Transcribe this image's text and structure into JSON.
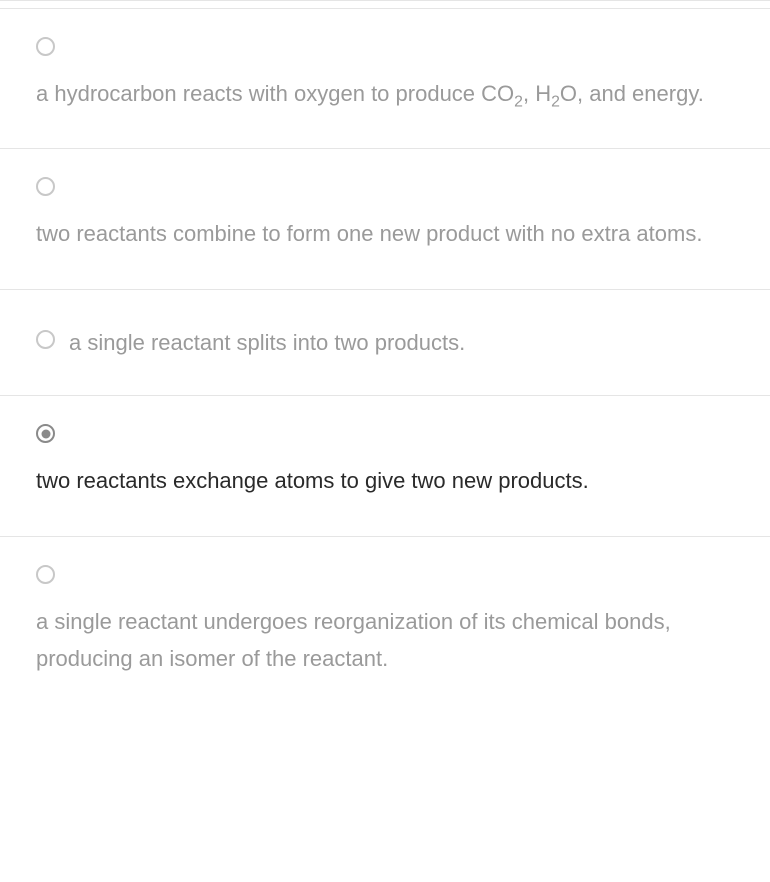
{
  "options": [
    {
      "text_html": "a hydrocarbon reacts with oxygen to produce CO<sub>2</sub>, H<sub>2</sub>O, and energy.",
      "selected": false,
      "inline": false
    },
    {
      "text_html": "two reactants combine to form one new product with no extra atoms.",
      "selected": false,
      "inline": false
    },
    {
      "text_html": "a single reactant splits into two products.",
      "selected": false,
      "inline": true
    },
    {
      "text_html": "two reactants exchange atoms to give two new products.",
      "selected": true,
      "inline": false
    },
    {
      "text_html": "a single reactant undergoes reorganization of its chemical bonds, producing an isomer of the reactant.",
      "selected": false,
      "inline": false
    }
  ],
  "colors": {
    "border": "#e5e5e5",
    "text_muted": "#9a9a9a",
    "text_selected": "#2a2a2a",
    "radio_border": "#c8c8c8",
    "radio_selected": "#8a8a8a",
    "background": "#ffffff"
  }
}
